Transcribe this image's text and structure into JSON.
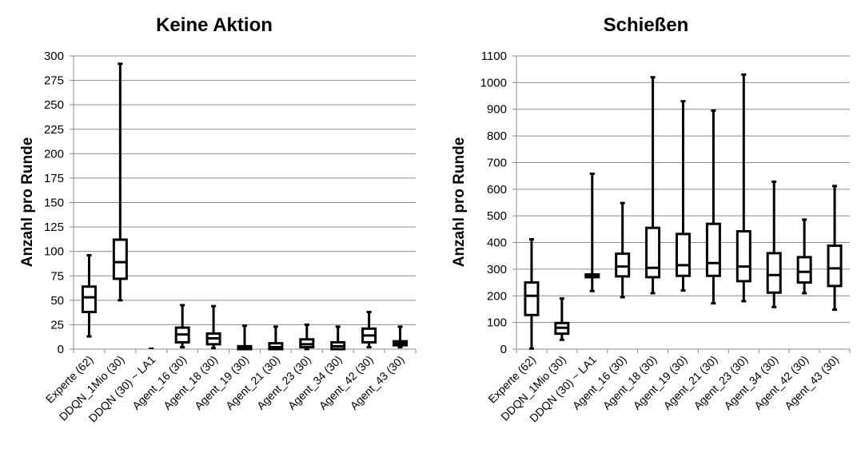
{
  "chart_data": [
    {
      "type": "boxplot",
      "title": "Keine Aktion",
      "ylabel": "Anzahl pro Runde",
      "xlabel": "",
      "ylim": [
        0,
        300
      ],
      "yticks": [
        0,
        25,
        50,
        75,
        100,
        125,
        150,
        175,
        200,
        225,
        250,
        275,
        300
      ],
      "grid": true,
      "categories": [
        "Experte (62)",
        "DDQN_1Mio (30)",
        "DDQN (30) ~ LA1",
        "Agent_16 (30)",
        "Agent_18 (30)",
        "Agent_19 (30)",
        "Agent_21 (30)",
        "Agent_23 (30)",
        "Agent_34 (30)",
        "Agent_42 (30)",
        "Agent_43 (30)"
      ],
      "boxes": [
        {
          "min": 13,
          "q1": 38,
          "median": 53,
          "q3": 64,
          "max": 96
        },
        {
          "min": 50,
          "q1": 72,
          "median": 89,
          "q3": 112,
          "max": 292
        },
        {
          "min": 0,
          "q1": 0,
          "median": 0,
          "q3": 0,
          "max": 0
        },
        {
          "min": 2,
          "q1": 7,
          "median": 15,
          "q3": 22,
          "max": 45
        },
        {
          "min": 1,
          "q1": 5,
          "median": 11,
          "q3": 16,
          "max": 44
        },
        {
          "min": 0,
          "q1": 0,
          "median": 1,
          "q3": 3,
          "max": 24
        },
        {
          "min": 0,
          "q1": 0,
          "median": 2,
          "q3": 6,
          "max": 23
        },
        {
          "min": 0,
          "q1": 2,
          "median": 5,
          "q3": 10,
          "max": 25
        },
        {
          "min": 0,
          "q1": 0,
          "median": 3,
          "q3": 7,
          "max": 23
        },
        {
          "min": 2,
          "q1": 7,
          "median": 14,
          "q3": 21,
          "max": 38
        },
        {
          "min": 2,
          "q1": 4,
          "median": 6,
          "q3": 8,
          "max": 23
        }
      ]
    },
    {
      "type": "boxplot",
      "title": "Schießen",
      "ylabel": "Anzahl pro Runde",
      "xlabel": "",
      "ylim": [
        0,
        1100
      ],
      "yticks": [
        0,
        100,
        200,
        300,
        400,
        500,
        600,
        700,
        800,
        900,
        1000,
        1100
      ],
      "grid": true,
      "categories": [
        "Experte (62)",
        "DDQN_1Mio (30)",
        "DDQN (30) ~ LA1",
        "Agent_16 (30)",
        "Agent_18 (30)",
        "Agent_19 (30)",
        "Agent_21 (30)",
        "Agent_23 (30)",
        "Agent_34 (30)",
        "Agent_42 (30)",
        "Agent_43 (30)"
      ],
      "boxes": [
        {
          "min": 2,
          "q1": 128,
          "median": 200,
          "q3": 250,
          "max": 412
        },
        {
          "min": 35,
          "q1": 58,
          "median": 80,
          "q3": 98,
          "max": 190
        },
        {
          "min": 218,
          "q1": 270,
          "median": 275,
          "q3": 280,
          "max": 658
        },
        {
          "min": 195,
          "q1": 273,
          "median": 310,
          "q3": 358,
          "max": 548
        },
        {
          "min": 210,
          "q1": 270,
          "median": 305,
          "q3": 455,
          "max": 1020
        },
        {
          "min": 220,
          "q1": 275,
          "median": 315,
          "q3": 432,
          "max": 930
        },
        {
          "min": 172,
          "q1": 275,
          "median": 323,
          "q3": 470,
          "max": 895
        },
        {
          "min": 180,
          "q1": 255,
          "median": 310,
          "q3": 442,
          "max": 1030
        },
        {
          "min": 158,
          "q1": 212,
          "median": 278,
          "q3": 360,
          "max": 628
        },
        {
          "min": 210,
          "q1": 250,
          "median": 290,
          "q3": 345,
          "max": 486
        },
        {
          "min": 148,
          "q1": 237,
          "median": 303,
          "q3": 388,
          "max": 612
        }
      ]
    }
  ]
}
